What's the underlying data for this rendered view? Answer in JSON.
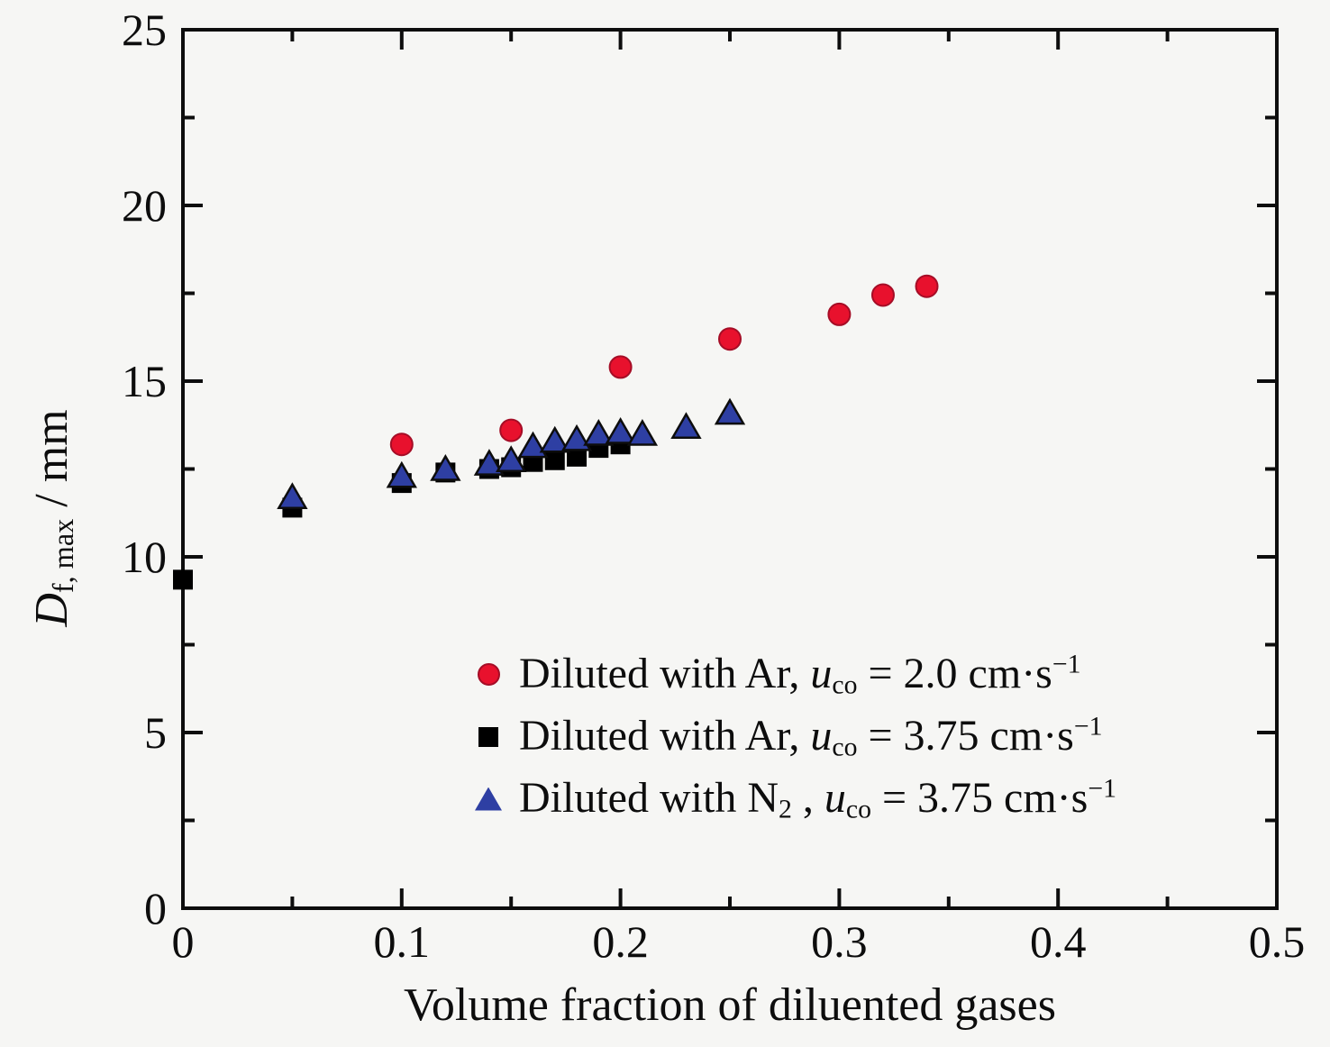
{
  "figure": {
    "background": "#f6f6f4",
    "axis_color": "#0d0d0d"
  },
  "chart_data": {
    "type": "scatter",
    "title": "",
    "xlabel": "Volume fraction of diluented gases",
    "ylabel": "D_f, max / mm",
    "xlim": [
      0,
      0.5
    ],
    "ylim": [
      0,
      25
    ],
    "xticks": [
      "0",
      "0.1",
      "0.2",
      "0.3",
      "0.4",
      "0.5"
    ],
    "yticks": [
      "0",
      "5",
      "10",
      "15",
      "20",
      "25"
    ],
    "x_minor_step": 0.05,
    "y_minor_step": 2.5,
    "grid": false,
    "legend_position": "inside-lower-center",
    "ylabel_segments": [
      {
        "text": "D",
        "style": "italic"
      },
      {
        "text": "f, max",
        "style": "sub"
      },
      {
        "text": " / mm",
        "style": "normal"
      }
    ],
    "series": [
      {
        "name": "Diluted with Ar, u_co = 2.0 cm·s⁻¹",
        "marker": "circle",
        "color": "#e8112d",
        "edge_color": "#a50d26",
        "label_segments": [
          {
            "text": "Diluted with Ar, ",
            "style": "normal"
          },
          {
            "text": "u",
            "style": "italic"
          },
          {
            "text": "co",
            "style": "sub"
          },
          {
            "text": " = 2.0 cm·s",
            "style": "normal"
          },
          {
            "text": "−1",
            "style": "sup"
          }
        ],
        "points": [
          [
            0.1,
            13.2
          ],
          [
            0.15,
            13.6
          ],
          [
            0.2,
            15.4
          ],
          [
            0.25,
            16.2
          ],
          [
            0.3,
            16.9
          ],
          [
            0.32,
            17.45
          ],
          [
            0.34,
            17.7
          ]
        ]
      },
      {
        "name": "Diluted with Ar, u_co = 3.75 cm·s⁻¹",
        "marker": "square",
        "color": "#000000",
        "edge_color": "#000000",
        "label_segments": [
          {
            "text": "Diluted with Ar, ",
            "style": "normal"
          },
          {
            "text": "u",
            "style": "italic"
          },
          {
            "text": "co",
            "style": "sub"
          },
          {
            "text": " = 3.75 cm·s",
            "style": "normal"
          },
          {
            "text": "−1",
            "style": "sup"
          }
        ],
        "points": [
          [
            0.0,
            9.35
          ],
          [
            0.05,
            11.4
          ],
          [
            0.1,
            12.1
          ],
          [
            0.12,
            12.4
          ],
          [
            0.14,
            12.5
          ],
          [
            0.15,
            12.55
          ],
          [
            0.16,
            12.7
          ],
          [
            0.17,
            12.75
          ],
          [
            0.18,
            12.85
          ],
          [
            0.19,
            13.1
          ],
          [
            0.2,
            13.2
          ]
        ]
      },
      {
        "name": "Diluted with N2 , u_co = 3.75 cm·s⁻¹",
        "marker": "triangle",
        "color": "#2e3fa3",
        "edge_color": "#0d0d0d",
        "label_segments": [
          {
            "text": "Diluted with N",
            "style": "normal"
          },
          {
            "text": "2",
            "style": "sub"
          },
          {
            "text": " , ",
            "style": "normal"
          },
          {
            "text": "u",
            "style": "italic"
          },
          {
            "text": "co",
            "style": "sub"
          },
          {
            "text": " = 3.75 cm·s",
            "style": "normal"
          },
          {
            "text": "−1",
            "style": "sup"
          }
        ],
        "points": [
          [
            0.05,
            11.7
          ],
          [
            0.1,
            12.3
          ],
          [
            0.12,
            12.5
          ],
          [
            0.14,
            12.65
          ],
          [
            0.15,
            12.75
          ],
          [
            0.16,
            13.15
          ],
          [
            0.17,
            13.3
          ],
          [
            0.18,
            13.35
          ],
          [
            0.19,
            13.5
          ],
          [
            0.2,
            13.55
          ],
          [
            0.21,
            13.5
          ],
          [
            0.23,
            13.7
          ],
          [
            0.25,
            14.1
          ]
        ]
      }
    ]
  }
}
